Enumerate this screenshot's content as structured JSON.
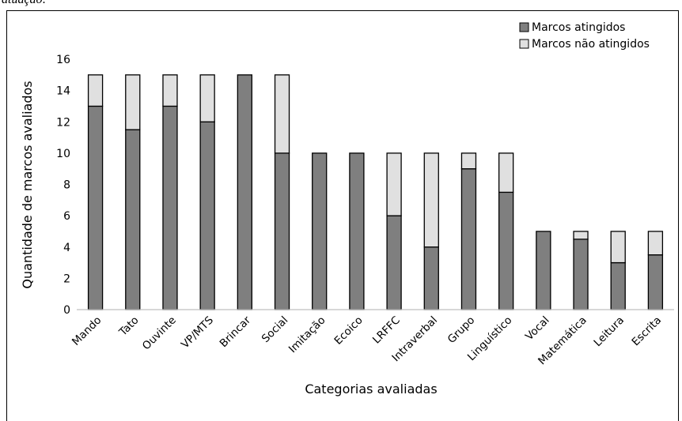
{
  "caption_fragment": "atuação:",
  "chart_data": {
    "type": "bar",
    "stacked": true,
    "categories": [
      "Mando",
      "Tato",
      "Ouvinte",
      "VP/MTS",
      "Brincar",
      "Social",
      "Imitação",
      "Ecoico",
      "LRFFC",
      "Intraverbal",
      "Grupo",
      "Linguístico",
      "Vocal",
      "Matemática",
      "Leitura",
      "Escrita"
    ],
    "series": [
      {
        "name": "Marcos atingidos",
        "color": "#7f7f7f",
        "values": [
          13,
          11.5,
          13,
          12,
          15,
          10,
          10,
          10,
          6,
          4,
          9,
          7.5,
          5,
          4.5,
          3,
          3.5
        ]
      },
      {
        "name": "Marcos não atingidos",
        "color": "#e0e0e0",
        "values": [
          2,
          3.5,
          2,
          3,
          0,
          5,
          0,
          0,
          4,
          6,
          1,
          2.5,
          0,
          0.5,
          2,
          1.5
        ]
      }
    ],
    "xlabel": "Categorias avaliadas",
    "ylabel": "Quantidade de marcos avaliados",
    "ylim": [
      0,
      16
    ],
    "yticks": [
      0,
      2,
      4,
      6,
      8,
      10,
      12,
      14,
      16
    ],
    "grid": false,
    "legend_position": "top-right"
  }
}
